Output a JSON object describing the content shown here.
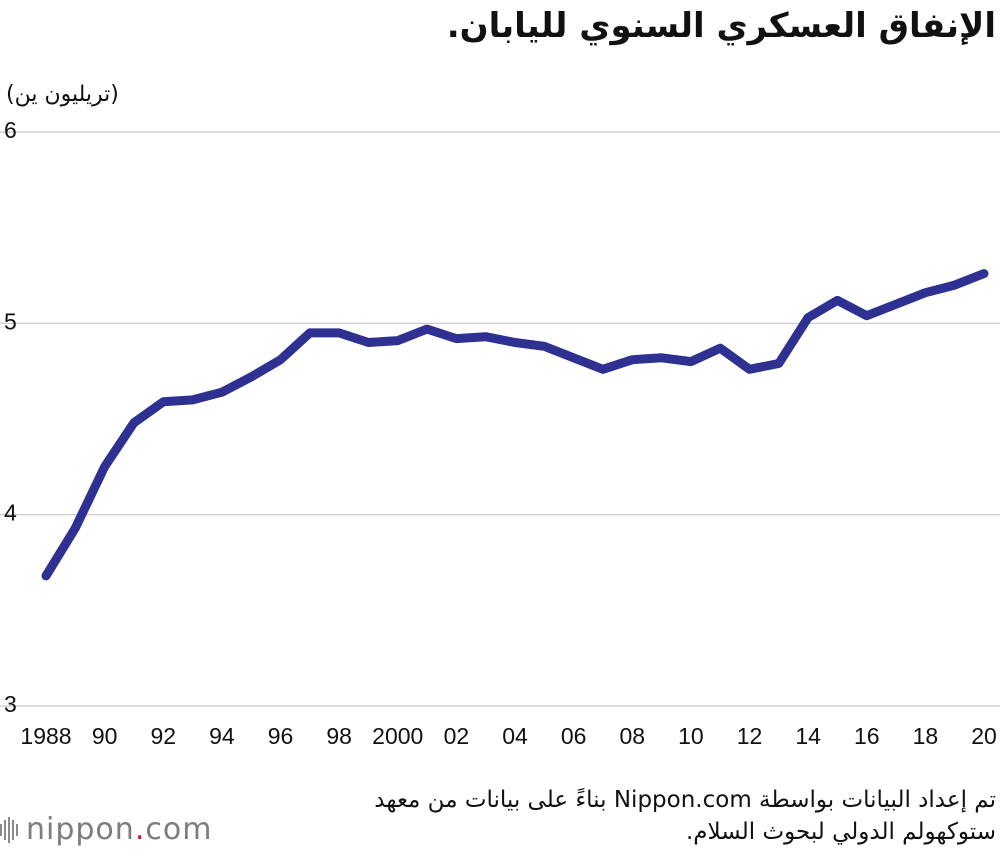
{
  "title": "الإنفاق العسكري السنوي لليابان.",
  "unit_label": "(تريليون ين)",
  "source_note": "تم إعداد البيانات بواسطة Nippon.com بناءً على بيانات من معهد ستوكهولم الدولي لبحوث السلام.",
  "logo": {
    "name": "nippon",
    "dot": ".",
    "suffix": "com",
    "icon": "nippon-bars-logo-icon"
  },
  "colors": {
    "line": "#2e3191",
    "grid": "#c8c8c8",
    "logo_dot": "#e0152b",
    "logo_text": "#7d7d7d"
  },
  "chart_data": {
    "type": "line",
    "title": "الإنفاق العسكري السنوي لليابان.",
    "ylabel": "(تريليون ين)",
    "xlabel": "",
    "ylim": [
      3,
      6
    ],
    "xlim": [
      1988,
      2020
    ],
    "grid": true,
    "yticks": [
      3,
      4,
      5,
      6
    ],
    "xticks": [
      {
        "x": 1988,
        "label": "1988"
      },
      {
        "x": 1990,
        "label": "90"
      },
      {
        "x": 1992,
        "label": "92"
      },
      {
        "x": 1994,
        "label": "94"
      },
      {
        "x": 1996,
        "label": "96"
      },
      {
        "x": 1998,
        "label": "98"
      },
      {
        "x": 2000,
        "label": "2000"
      },
      {
        "x": 2002,
        "label": "02"
      },
      {
        "x": 2004,
        "label": "04"
      },
      {
        "x": 2006,
        "label": "06"
      },
      {
        "x": 2008,
        "label": "08"
      },
      {
        "x": 2010,
        "label": "10"
      },
      {
        "x": 2012,
        "label": "12"
      },
      {
        "x": 2014,
        "label": "14"
      },
      {
        "x": 2016,
        "label": "16"
      },
      {
        "x": 2018,
        "label": "18"
      },
      {
        "x": 2020,
        "label": "20"
      }
    ],
    "x": [
      1988,
      1989,
      1990,
      1991,
      1992,
      1993,
      1994,
      1995,
      1996,
      1997,
      1998,
      1999,
      2000,
      2001,
      2002,
      2003,
      2004,
      2005,
      2006,
      2007,
      2008,
      2009,
      2010,
      2011,
      2012,
      2013,
      2014,
      2015,
      2016,
      2017,
      2018,
      2019,
      2020
    ],
    "series": [
      {
        "values": [
          3.68,
          3.93,
          4.25,
          4.48,
          4.59,
          4.6,
          4.64,
          4.72,
          4.81,
          4.95,
          4.95,
          4.9,
          4.91,
          4.97,
          4.92,
          4.93,
          4.9,
          4.88,
          4.82,
          4.76,
          4.81,
          4.82,
          4.8,
          4.87,
          4.76,
          4.79,
          5.03,
          5.12,
          5.04,
          5.1,
          5.16,
          5.2,
          5.26
        ]
      }
    ]
  }
}
